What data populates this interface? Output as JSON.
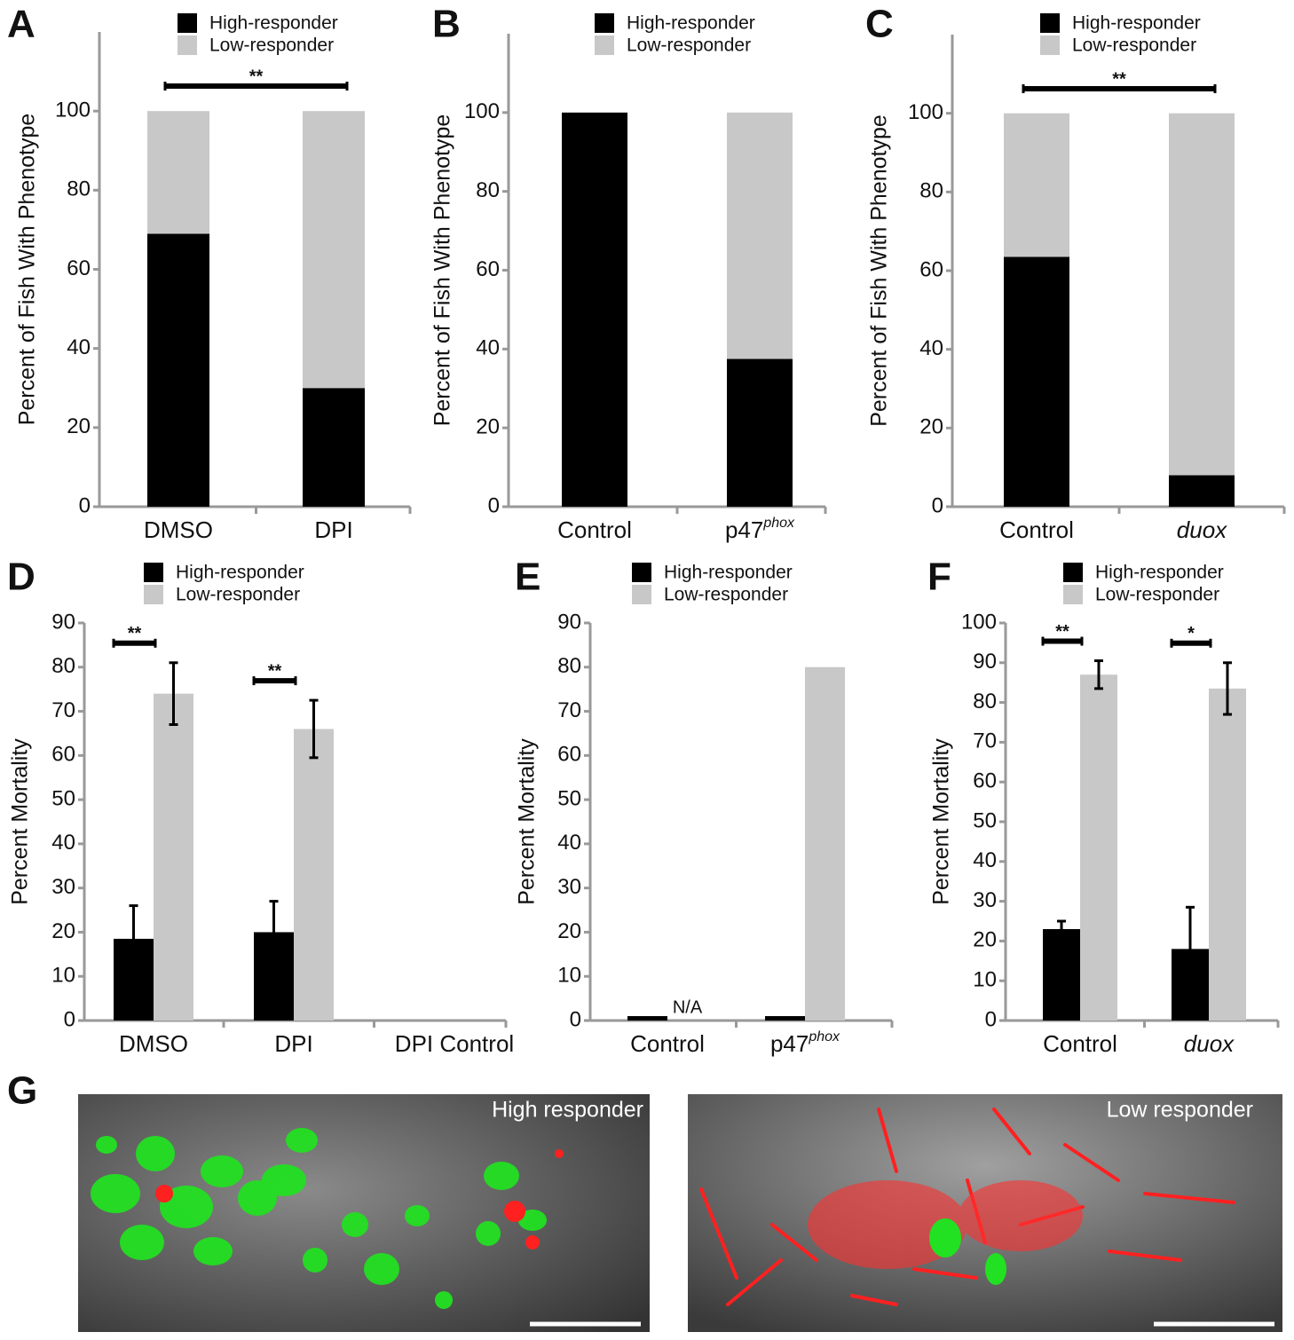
{
  "chart_data": [
    {
      "panel": "A",
      "type": "stacked_bar",
      "ylabel": "Percent of Fish With Phenotype",
      "categories": [
        "DMSO",
        "DPI"
      ],
      "series": [
        {
          "name": "High-responder",
          "color": "#000000",
          "values": [
            69,
            30
          ]
        },
        {
          "name": "Low-responder",
          "color": "#c8c8c8",
          "values": [
            31,
            70
          ]
        }
      ],
      "ylim": [
        0,
        120
      ],
      "yticks": [
        0,
        20,
        40,
        60,
        80,
        100
      ],
      "significance": "**"
    },
    {
      "panel": "B",
      "type": "stacked_bar",
      "ylabel": "Percent of Fish With Phenotype",
      "categories": [
        "Control",
        {
          "text": "p47",
          "sup": "phox"
        }
      ],
      "series": [
        {
          "name": "High-responder",
          "color": "#000000",
          "values": [
            100,
            37.5
          ]
        },
        {
          "name": "Low-responder",
          "color": "#c8c8c8",
          "values": [
            0,
            62.5
          ]
        }
      ],
      "ylim": [
        0,
        120
      ],
      "yticks": [
        0,
        20,
        40,
        60,
        80,
        100
      ]
    },
    {
      "panel": "C",
      "type": "stacked_bar",
      "ylabel": "Percent of Fish With Phenotype",
      "categories": [
        "Control",
        "duox"
      ],
      "italic_categories": [
        false,
        true
      ],
      "series": [
        {
          "name": "High-responder",
          "color": "#000000",
          "values": [
            63.5,
            8
          ]
        },
        {
          "name": "Low-responder",
          "color": "#c8c8c8",
          "values": [
            36.5,
            92
          ]
        }
      ],
      "ylim": [
        0,
        120
      ],
      "yticks": [
        0,
        20,
        40,
        60,
        80,
        100
      ],
      "significance": "**"
    },
    {
      "panel": "D",
      "type": "grouped_bar",
      "ylabel": "Percent Mortality",
      "categories": [
        "DMSO",
        "DPI",
        "DPI Control"
      ],
      "series": [
        {
          "name": "High-responder",
          "color": "#000000",
          "values": [
            18.5,
            20,
            null
          ],
          "errors": [
            7.5,
            7,
            null
          ]
        },
        {
          "name": "Low-responder",
          "color": "#c8c8c8",
          "values": [
            74,
            66,
            null
          ],
          "errors": [
            7,
            6.5,
            null
          ]
        }
      ],
      "ylim": [
        0,
        90
      ],
      "yticks": [
        0,
        10,
        20,
        30,
        40,
        50,
        60,
        70,
        80,
        90
      ],
      "significance": [
        "**",
        "**",
        null
      ]
    },
    {
      "panel": "E",
      "type": "grouped_bar",
      "ylabel": "Percent Mortality",
      "categories": [
        "Control",
        {
          "text": "p47",
          "sup": "phox"
        }
      ],
      "series": [
        {
          "name": "High-responder",
          "color": "#000000",
          "values": [
            1,
            1
          ]
        },
        {
          "name": "Low-responder",
          "color": "#c8c8c8",
          "values": [
            null,
            80
          ],
          "value_labels": [
            "N/A",
            null
          ]
        }
      ],
      "ylim": [
        0,
        90
      ],
      "yticks": [
        0,
        10,
        20,
        30,
        40,
        50,
        60,
        70,
        80,
        90
      ]
    },
    {
      "panel": "F",
      "type": "grouped_bar",
      "ylabel": "Percent Mortality",
      "categories": [
        "Control",
        "duox"
      ],
      "italic_categories": [
        false,
        true
      ],
      "series": [
        {
          "name": "High-responder",
          "color": "#000000",
          "values": [
            23,
            18
          ],
          "errors": [
            2,
            10.5
          ]
        },
        {
          "name": "Low-responder",
          "color": "#c8c8c8",
          "values": [
            87,
            83.5
          ],
          "errors": [
            3.5,
            6.5
          ]
        }
      ],
      "ylim": [
        0,
        100
      ],
      "yticks": [
        0,
        10,
        20,
        30,
        40,
        50,
        60,
        70,
        80,
        90,
        100
      ],
      "significance": [
        "**",
        "*"
      ]
    }
  ],
  "images": {
    "panel": "G",
    "labels": [
      "High responder",
      "Low responder"
    ]
  }
}
